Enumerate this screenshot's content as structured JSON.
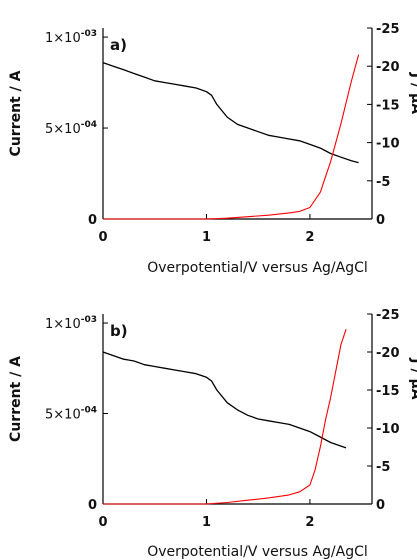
{
  "chart_data": [
    {
      "panel_label": "a)",
      "type": "line",
      "xlabel": "Overpotential/V versus Ag/AgCl",
      "ylabel_left": "Current / A",
      "ylabel_right": "J / µA",
      "x_ticks": [
        "0",
        "1",
        "2"
      ],
      "y_left_ticks": [
        "0",
        "5×10",
        "1×10"
      ],
      "y_left_tick_exponents": [
        "",
        "-04",
        "-03"
      ],
      "y_right_ticks": [
        "0",
        "-5",
        "-10",
        "-15",
        "-20",
        "-25"
      ],
      "xlim": [
        0,
        2.6
      ],
      "ylim_left": [
        0,
        0.00105
      ],
      "ylim_right": [
        0,
        -25
      ],
      "series": [
        {
          "axis": "left",
          "color": "#000000",
          "x": [
            0.0,
            0.1,
            0.2,
            0.3,
            0.4,
            0.5,
            0.6,
            0.7,
            0.8,
            0.9,
            1.0,
            1.05,
            1.1,
            1.2,
            1.3,
            1.4,
            1.5,
            1.6,
            1.7,
            1.8,
            1.9,
            2.0,
            2.1,
            2.2,
            2.3,
            2.4,
            2.47
          ],
          "y": [
            0.00086,
            0.00084,
            0.00082,
            0.0008,
            0.00078,
            0.00076,
            0.00075,
            0.00074,
            0.00073,
            0.00072,
            0.0007,
            0.00068,
            0.00063,
            0.00056,
            0.00052,
            0.0005,
            0.00048,
            0.00046,
            0.00045,
            0.00044,
            0.00043,
            0.00041,
            0.00039,
            0.00036,
            0.00034,
            0.00032,
            0.00031
          ]
        },
        {
          "axis": "right",
          "color": "#ff0000",
          "x": [
            0.0,
            0.5,
            1.0,
            1.2,
            1.4,
            1.6,
            1.8,
            1.9,
            2.0,
            2.1,
            2.2,
            2.3,
            2.4,
            2.47
          ],
          "y": [
            0,
            0,
            0,
            -0.1,
            -0.3,
            -0.5,
            -0.8,
            -1.0,
            -1.5,
            -3.5,
            -7.5,
            -12.5,
            -18.0,
            -21.5
          ]
        }
      ]
    },
    {
      "panel_label": "b)",
      "type": "line",
      "xlabel": "Overpotential/V versus Ag/AgCl",
      "ylabel_left": "Current / A",
      "ylabel_right": "J / µA",
      "x_ticks": [
        "0",
        "1",
        "2"
      ],
      "y_left_ticks": [
        "0",
        "5×10",
        "1×10"
      ],
      "y_left_tick_exponents": [
        "",
        "-04",
        "-03"
      ],
      "y_right_ticks": [
        "0",
        "-5",
        "-10",
        "-15",
        "-20",
        "-25"
      ],
      "xlim": [
        0,
        2.6
      ],
      "ylim_left": [
        0,
        0.00105
      ],
      "ylim_right": [
        0,
        -25
      ],
      "series": [
        {
          "axis": "left",
          "color": "#000000",
          "x": [
            0.0,
            0.1,
            0.2,
            0.3,
            0.4,
            0.5,
            0.6,
            0.7,
            0.8,
            0.9,
            1.0,
            1.05,
            1.1,
            1.2,
            1.3,
            1.4,
            1.5,
            1.6,
            1.7,
            1.8,
            1.9,
            2.0,
            2.1,
            2.2,
            2.3,
            2.35
          ],
          "y": [
            0.00084,
            0.00082,
            0.0008,
            0.00079,
            0.00077,
            0.00076,
            0.00075,
            0.00074,
            0.00073,
            0.00072,
            0.0007,
            0.00068,
            0.00063,
            0.00056,
            0.00052,
            0.00049,
            0.00047,
            0.00046,
            0.00045,
            0.00044,
            0.00042,
            0.0004,
            0.00037,
            0.00034,
            0.00032,
            0.00031
          ]
        },
        {
          "axis": "right",
          "color": "#ff0000",
          "x": [
            0.0,
            0.5,
            1.0,
            1.2,
            1.4,
            1.6,
            1.8,
            1.9,
            2.0,
            2.05,
            2.1,
            2.15,
            2.2,
            2.25,
            2.3,
            2.35
          ],
          "y": [
            0,
            0,
            0,
            -0.2,
            -0.5,
            -0.8,
            -1.2,
            -1.6,
            -2.5,
            -4.5,
            -7.5,
            -11.0,
            -14.0,
            -17.5,
            -21.0,
            -23.0
          ]
        }
      ]
    }
  ]
}
